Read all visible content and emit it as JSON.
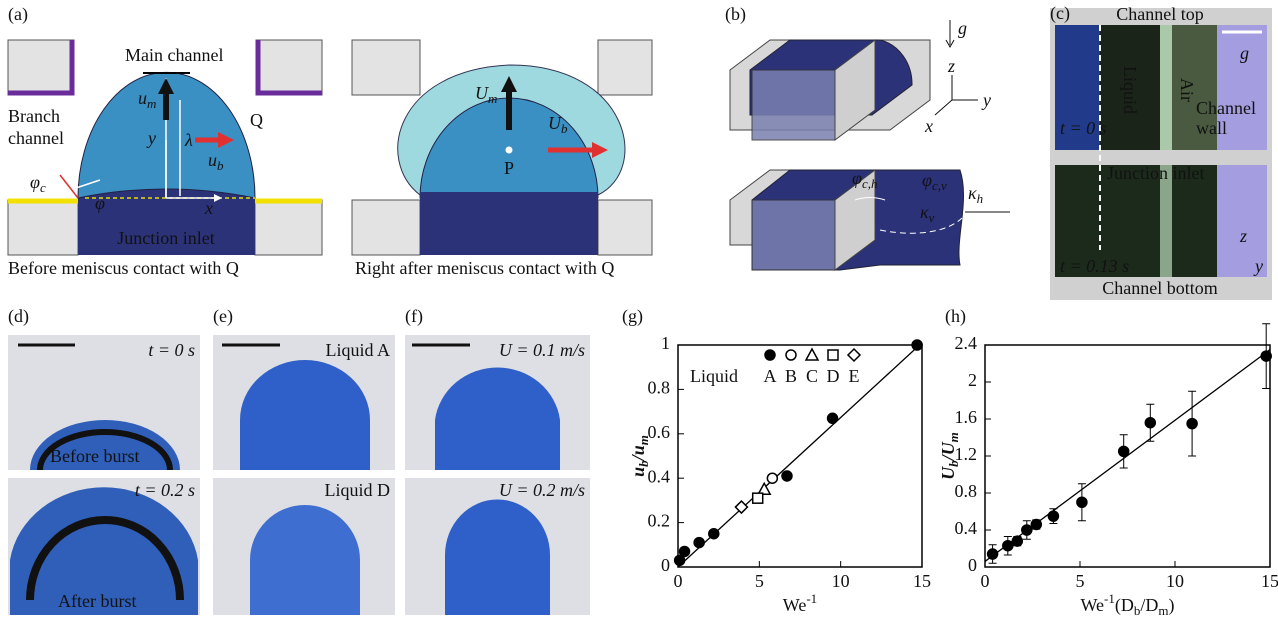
{
  "panels": {
    "a": {
      "label": "(a)",
      "main_channel": "Main channel",
      "branch_channel": [
        "Branch",
        "channel"
      ],
      "q": "Q",
      "um": [
        {
          "main": "u",
          "sub": "m"
        }
      ],
      "y": "y",
      "lambda": "λ",
      "ub": [
        {
          "main": "u",
          "sub": "b"
        }
      ],
      "phic": [
        {
          "main": "φ",
          "sub": "c"
        }
      ],
      "phi": "φ",
      "x": "x",
      "junction_inlet": "Junction inlet",
      "caption_left": "Before meniscus contact with Q",
      "Um": [
        {
          "main": "U",
          "sub": "m"
        }
      ],
      "Ub": [
        {
          "main": "U",
          "sub": "b"
        }
      ],
      "p": "P",
      "caption_right": "Right after meniscus contact with Q"
    },
    "b": {
      "label": "(b)",
      "g": "g",
      "z": "z",
      "y": "y",
      "x": "x",
      "phich": [
        {
          "main": "φ",
          "sub": "c,h"
        }
      ],
      "phicv": [
        {
          "main": "φ",
          "sub": "c,v"
        }
      ],
      "kv": [
        {
          "main": "κ",
          "sub": "v"
        }
      ],
      "kh": [
        {
          "main": "κ",
          "sub": "h"
        }
      ]
    },
    "c": {
      "label": "(c)",
      "channel_top": "Channel top",
      "liquid": "Liquid",
      "air": "Air",
      "channel_wall": [
        "Channel",
        "wall"
      ],
      "g": "g",
      "t0": "t = 0 s",
      "junction_inlet": "Junction inlet",
      "t1": "t = 0.13 s",
      "z": "z",
      "y": "y",
      "channel_bottom": "Channel bottom"
    },
    "d": {
      "label": "(d)",
      "t0": "t = 0 s",
      "before": "Before burst",
      "t1": "t = 0.2 s",
      "after": "After burst"
    },
    "e": {
      "label": "(e)",
      "top": "Liquid A",
      "bottom": "Liquid D"
    },
    "f": {
      "label": "(f)",
      "top": "U = 0.1 m/s",
      "bottom": "U = 0.2 m/s"
    }
  },
  "chart_data": [
    {
      "type": "scatter",
      "panel_label": "(g)",
      "xlabel": [
        {
          "main": "We",
          "sup": "-1"
        }
      ],
      "ylabel": [
        {
          "main": "u",
          "sub": "b"
        },
        {
          "main": "/u",
          "sub": "m"
        }
      ],
      "xlim": [
        0,
        15
      ],
      "xticks": [
        0,
        5,
        10,
        15
      ],
      "ylim": [
        0,
        1
      ],
      "yticks": [
        0,
        0.2,
        0.4,
        0.6,
        0.8,
        1
      ],
      "legend_title": "Liquid",
      "series": [
        {
          "name": "A",
          "marker": "circle",
          "filled": true,
          "x": [
            0.1,
            0.4,
            1.3,
            2.2,
            6.7,
            9.5,
            14.7
          ],
          "values": [
            0.03,
            0.07,
            0.11,
            0.15,
            0.41,
            0.67,
            1.0
          ]
        },
        {
          "name": "B",
          "marker": "circle",
          "filled": false,
          "x": [
            5.8
          ],
          "values": [
            0.4
          ]
        },
        {
          "name": "C",
          "marker": "triangle",
          "filled": false,
          "x": [
            5.3
          ],
          "values": [
            0.35
          ]
        },
        {
          "name": "D",
          "marker": "square",
          "filled": false,
          "x": [
            4.9
          ],
          "values": [
            0.31
          ]
        },
        {
          "name": "E",
          "marker": "diamond",
          "filled": false,
          "x": [
            3.9
          ],
          "values": [
            0.27
          ]
        }
      ],
      "fit_line": {
        "x": [
          0,
          15
        ],
        "values": [
          0,
          1.01
        ]
      }
    },
    {
      "type": "scatter",
      "panel_label": "(h)",
      "xlabel": [
        {
          "main": "We",
          "sup": "-1"
        },
        {
          "main": "(D",
          "sub": "b"
        },
        {
          "main": "/D",
          "sub": "m"
        },
        {
          "main": ")"
        }
      ],
      "ylabel": [
        {
          "main": "U",
          "sub": "b"
        },
        {
          "main": "/U",
          "sub": "m"
        }
      ],
      "xlim": [
        0,
        15
      ],
      "xticks": [
        0,
        5,
        10,
        15
      ],
      "ylim": [
        0,
        2.4
      ],
      "yticks": [
        0,
        0.4,
        0.8,
        1.2,
        1.6,
        2,
        2.4
      ],
      "series": [
        {
          "marker": "circle",
          "filled": true,
          "x": [
            0.4,
            1.2,
            1.7,
            2.2,
            2.7,
            3.6,
            5.1,
            7.3,
            8.7,
            10.9,
            14.8
          ],
          "values": [
            0.14,
            0.23,
            0.28,
            0.4,
            0.46,
            0.55,
            0.7,
            1.25,
            1.56,
            1.55,
            2.28
          ],
          "errors": [
            0.1,
            0.1,
            0.05,
            0.1,
            0.05,
            0.08,
            0.2,
            0.18,
            0.2,
            0.35,
            0.35
          ]
        }
      ],
      "fit_line": {
        "x": [
          0,
          15
        ],
        "values": [
          0.06,
          2.35
        ]
      }
    }
  ]
}
